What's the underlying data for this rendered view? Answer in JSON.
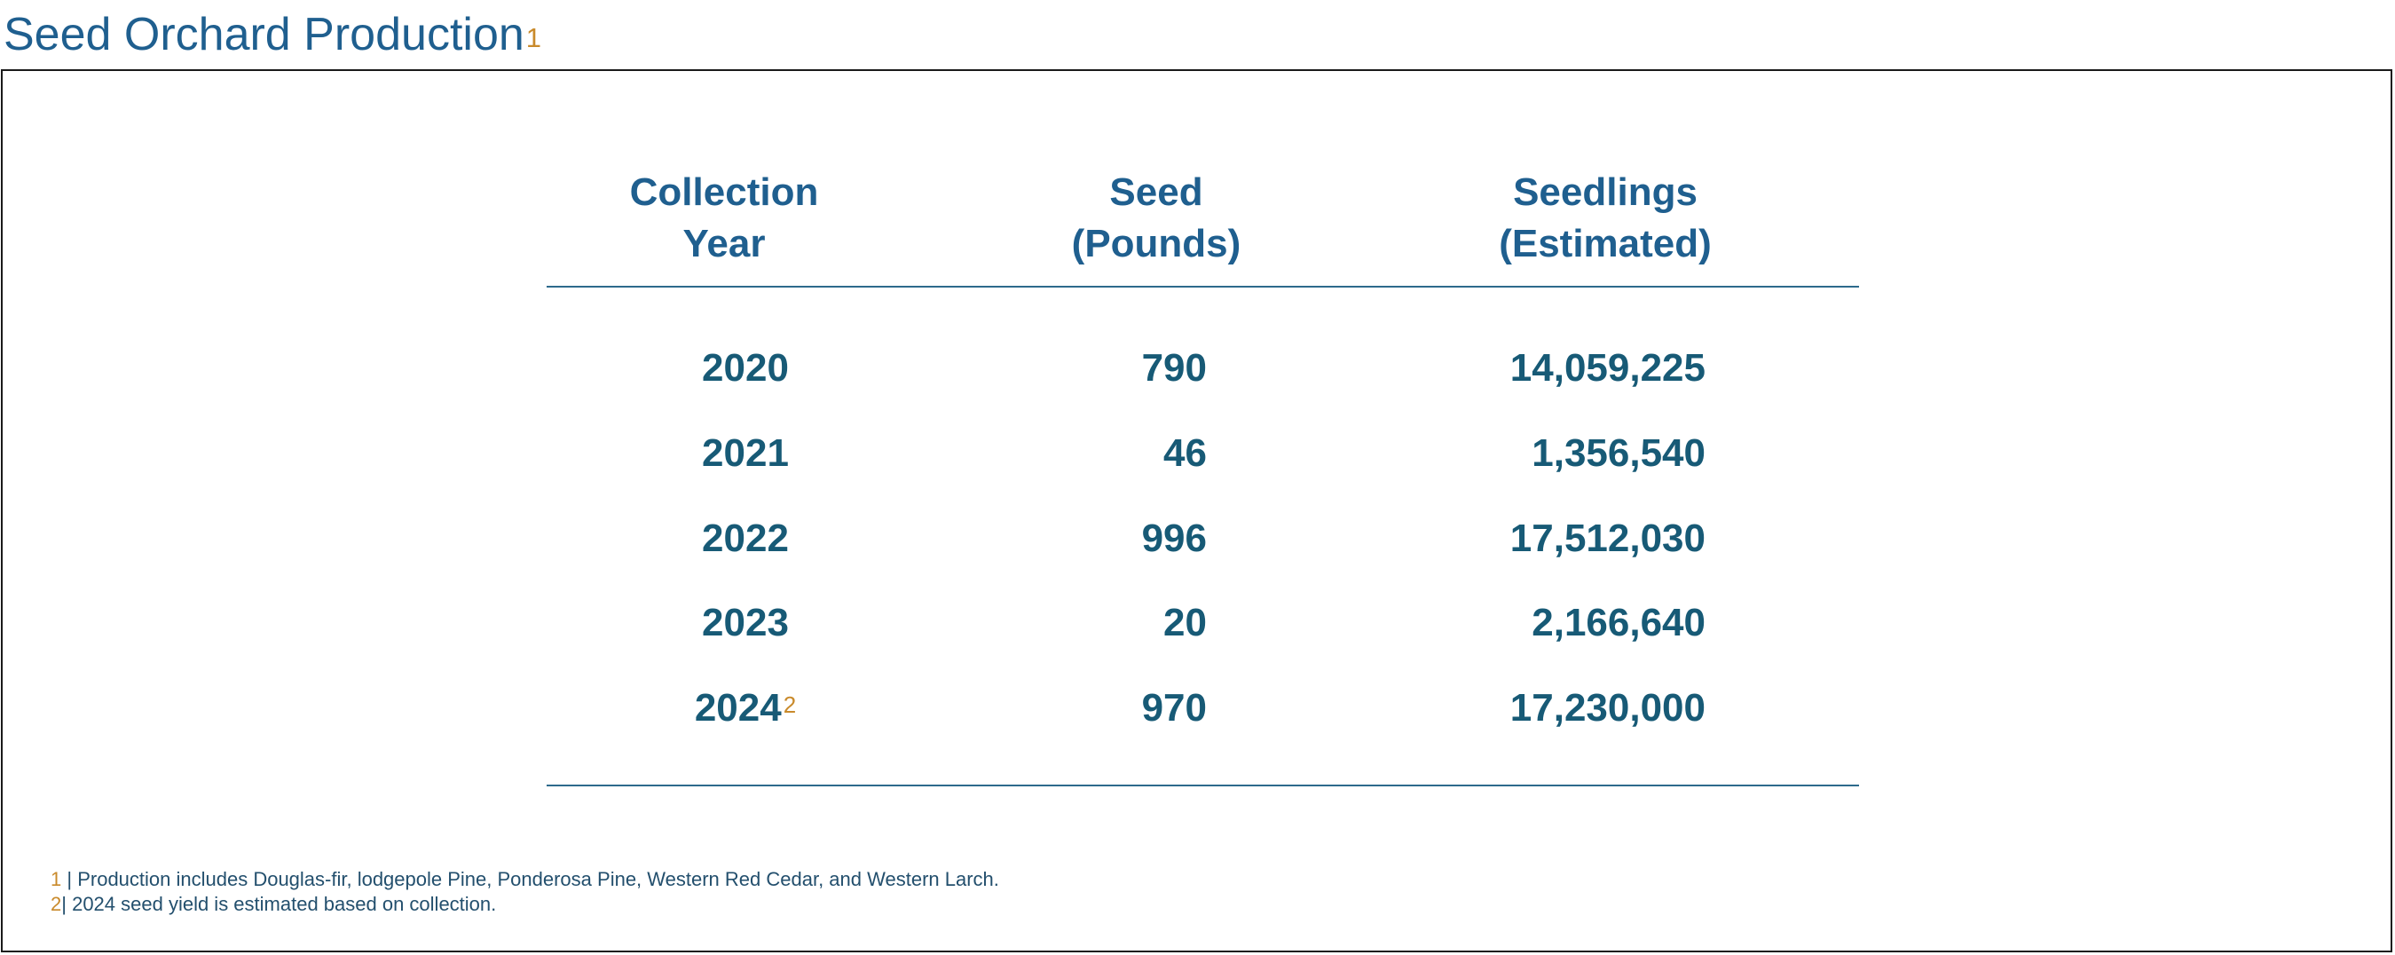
{
  "title": {
    "text": "Seed Orchard Production",
    "note_marker": "1"
  },
  "table": {
    "headers": [
      {
        "line1": "Collection",
        "line2": "Year"
      },
      {
        "line1": "Seed",
        "line2": "(Pounds)"
      },
      {
        "line1": "Seedlings",
        "line2": "(Estimated)"
      }
    ],
    "rows": [
      {
        "year": "2020",
        "year_note": "",
        "seed": "790",
        "seedlings": "14,059,225"
      },
      {
        "year": "2021",
        "year_note": "",
        "seed": "46",
        "seedlings": "1,356,540"
      },
      {
        "year": "2022",
        "year_note": "",
        "seed": "996",
        "seedlings": "17,512,030"
      },
      {
        "year": "2023",
        "year_note": "",
        "seed": "20",
        "seedlings": "2,166,640"
      },
      {
        "year": "2024",
        "year_note": "2",
        "seed": "970",
        "seedlings": "17,230,000"
      }
    ]
  },
  "footnotes": [
    {
      "marker": "1",
      "text": "| Production includes Douglas-fir, lodgepole Pine, Ponderosa Pine, Western Red Cedar, and Western Larch."
    },
    {
      "marker": "2",
      "text": "| 2024 seed yield is estimated based on collection."
    }
  ],
  "colors": {
    "title": "#1f5f8f",
    "accent": "#c98a2b",
    "cells": "#175a76",
    "rule": "#2d6a8c"
  }
}
